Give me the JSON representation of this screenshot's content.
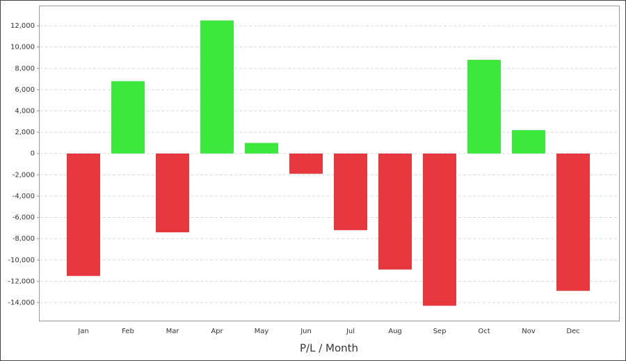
{
  "chart_data": {
    "type": "bar",
    "x_label": "P/L / Month",
    "categories": [
      "Jan",
      "Feb",
      "Mar",
      "Apr",
      "May",
      "Jun",
      "Jul",
      "Aug",
      "Sep",
      "Oct",
      "Nov",
      "Dec"
    ],
    "values": [
      -11500,
      6800,
      -7400,
      12500,
      1000,
      -1900,
      -7200,
      -10900,
      -14300,
      8800,
      2200,
      -12900
    ],
    "positive_color": "#3de83d",
    "negative_color": "#e5373c",
    "ylim": [
      -15700,
      13900
    ],
    "yticks": [
      {
        "value": -14000,
        "label": "-14,000"
      },
      {
        "value": -12000,
        "label": "-12,000"
      },
      {
        "value": -10000,
        "label": "-10,000"
      },
      {
        "value": -8000,
        "label": "-8,000"
      },
      {
        "value": -6000,
        "label": "-6,000"
      },
      {
        "value": -4000,
        "label": "-4,000"
      },
      {
        "value": -2000,
        "label": "-2,000"
      },
      0,
      {
        "value": 2000,
        "label": "2,000"
      },
      {
        "value": 4000,
        "label": "4,000"
      },
      {
        "value": 6000,
        "label": "6,000"
      },
      {
        "value": 8000,
        "label": "8,000"
      },
      {
        "value": 10000,
        "label": "10,000"
      },
      {
        "value": 12000,
        "label": "12,000"
      }
    ],
    "grid": true
  }
}
